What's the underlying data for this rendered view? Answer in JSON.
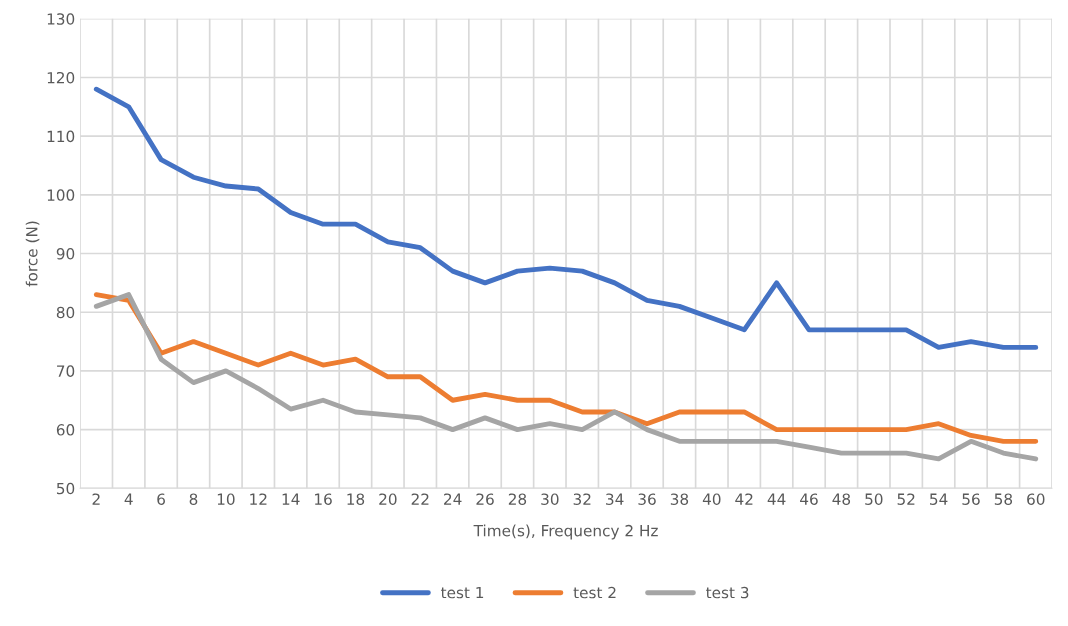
{
  "chart_data": {
    "type": "line",
    "xlabel": "Time(s), Frequency 2 Hz",
    "ylabel": "force (N)",
    "categories": [
      "2",
      "4",
      "6",
      "8",
      "10",
      "12",
      "14",
      "16",
      "18",
      "20",
      "22",
      "24",
      "26",
      "28",
      "30",
      "32",
      "34",
      "36",
      "38",
      "40",
      "42",
      "44",
      "46",
      "48",
      "50",
      "52",
      "54",
      "56",
      "58",
      "60"
    ],
    "series": [
      {
        "name": "test 1",
        "color": "#4472c4",
        "values": [
          118,
          115,
          106,
          103,
          101.5,
          101,
          97,
          95,
          95,
          92,
          91,
          87,
          85,
          87,
          87.5,
          87,
          85,
          82,
          81,
          79,
          77,
          85,
          77,
          77,
          77,
          77,
          74,
          75,
          74,
          74
        ]
      },
      {
        "name": "test 2",
        "color": "#ed7d31",
        "values": [
          83,
          82,
          73,
          75,
          73,
          71,
          73,
          71,
          72,
          69,
          69,
          65,
          66,
          65,
          65,
          63,
          63,
          61,
          63,
          63,
          63,
          60,
          60,
          60,
          60,
          60,
          61,
          59,
          58,
          58
        ]
      },
      {
        "name": "test 3",
        "color": "#a5a5a5",
        "values": [
          81,
          83,
          72,
          68,
          70,
          67,
          63.5,
          65,
          63,
          62.5,
          62,
          60,
          62,
          60,
          61,
          60,
          63,
          60,
          58,
          58,
          58,
          58,
          57,
          56,
          56,
          56,
          55,
          58,
          56,
          55
        ]
      }
    ],
    "ylim": [
      50,
      130
    ],
    "yticks": [
      50,
      60,
      70,
      80,
      90,
      100,
      110,
      120,
      130
    ],
    "grid": true,
    "legend": "bottom",
    "marker": "none",
    "line_style": "solid"
  }
}
